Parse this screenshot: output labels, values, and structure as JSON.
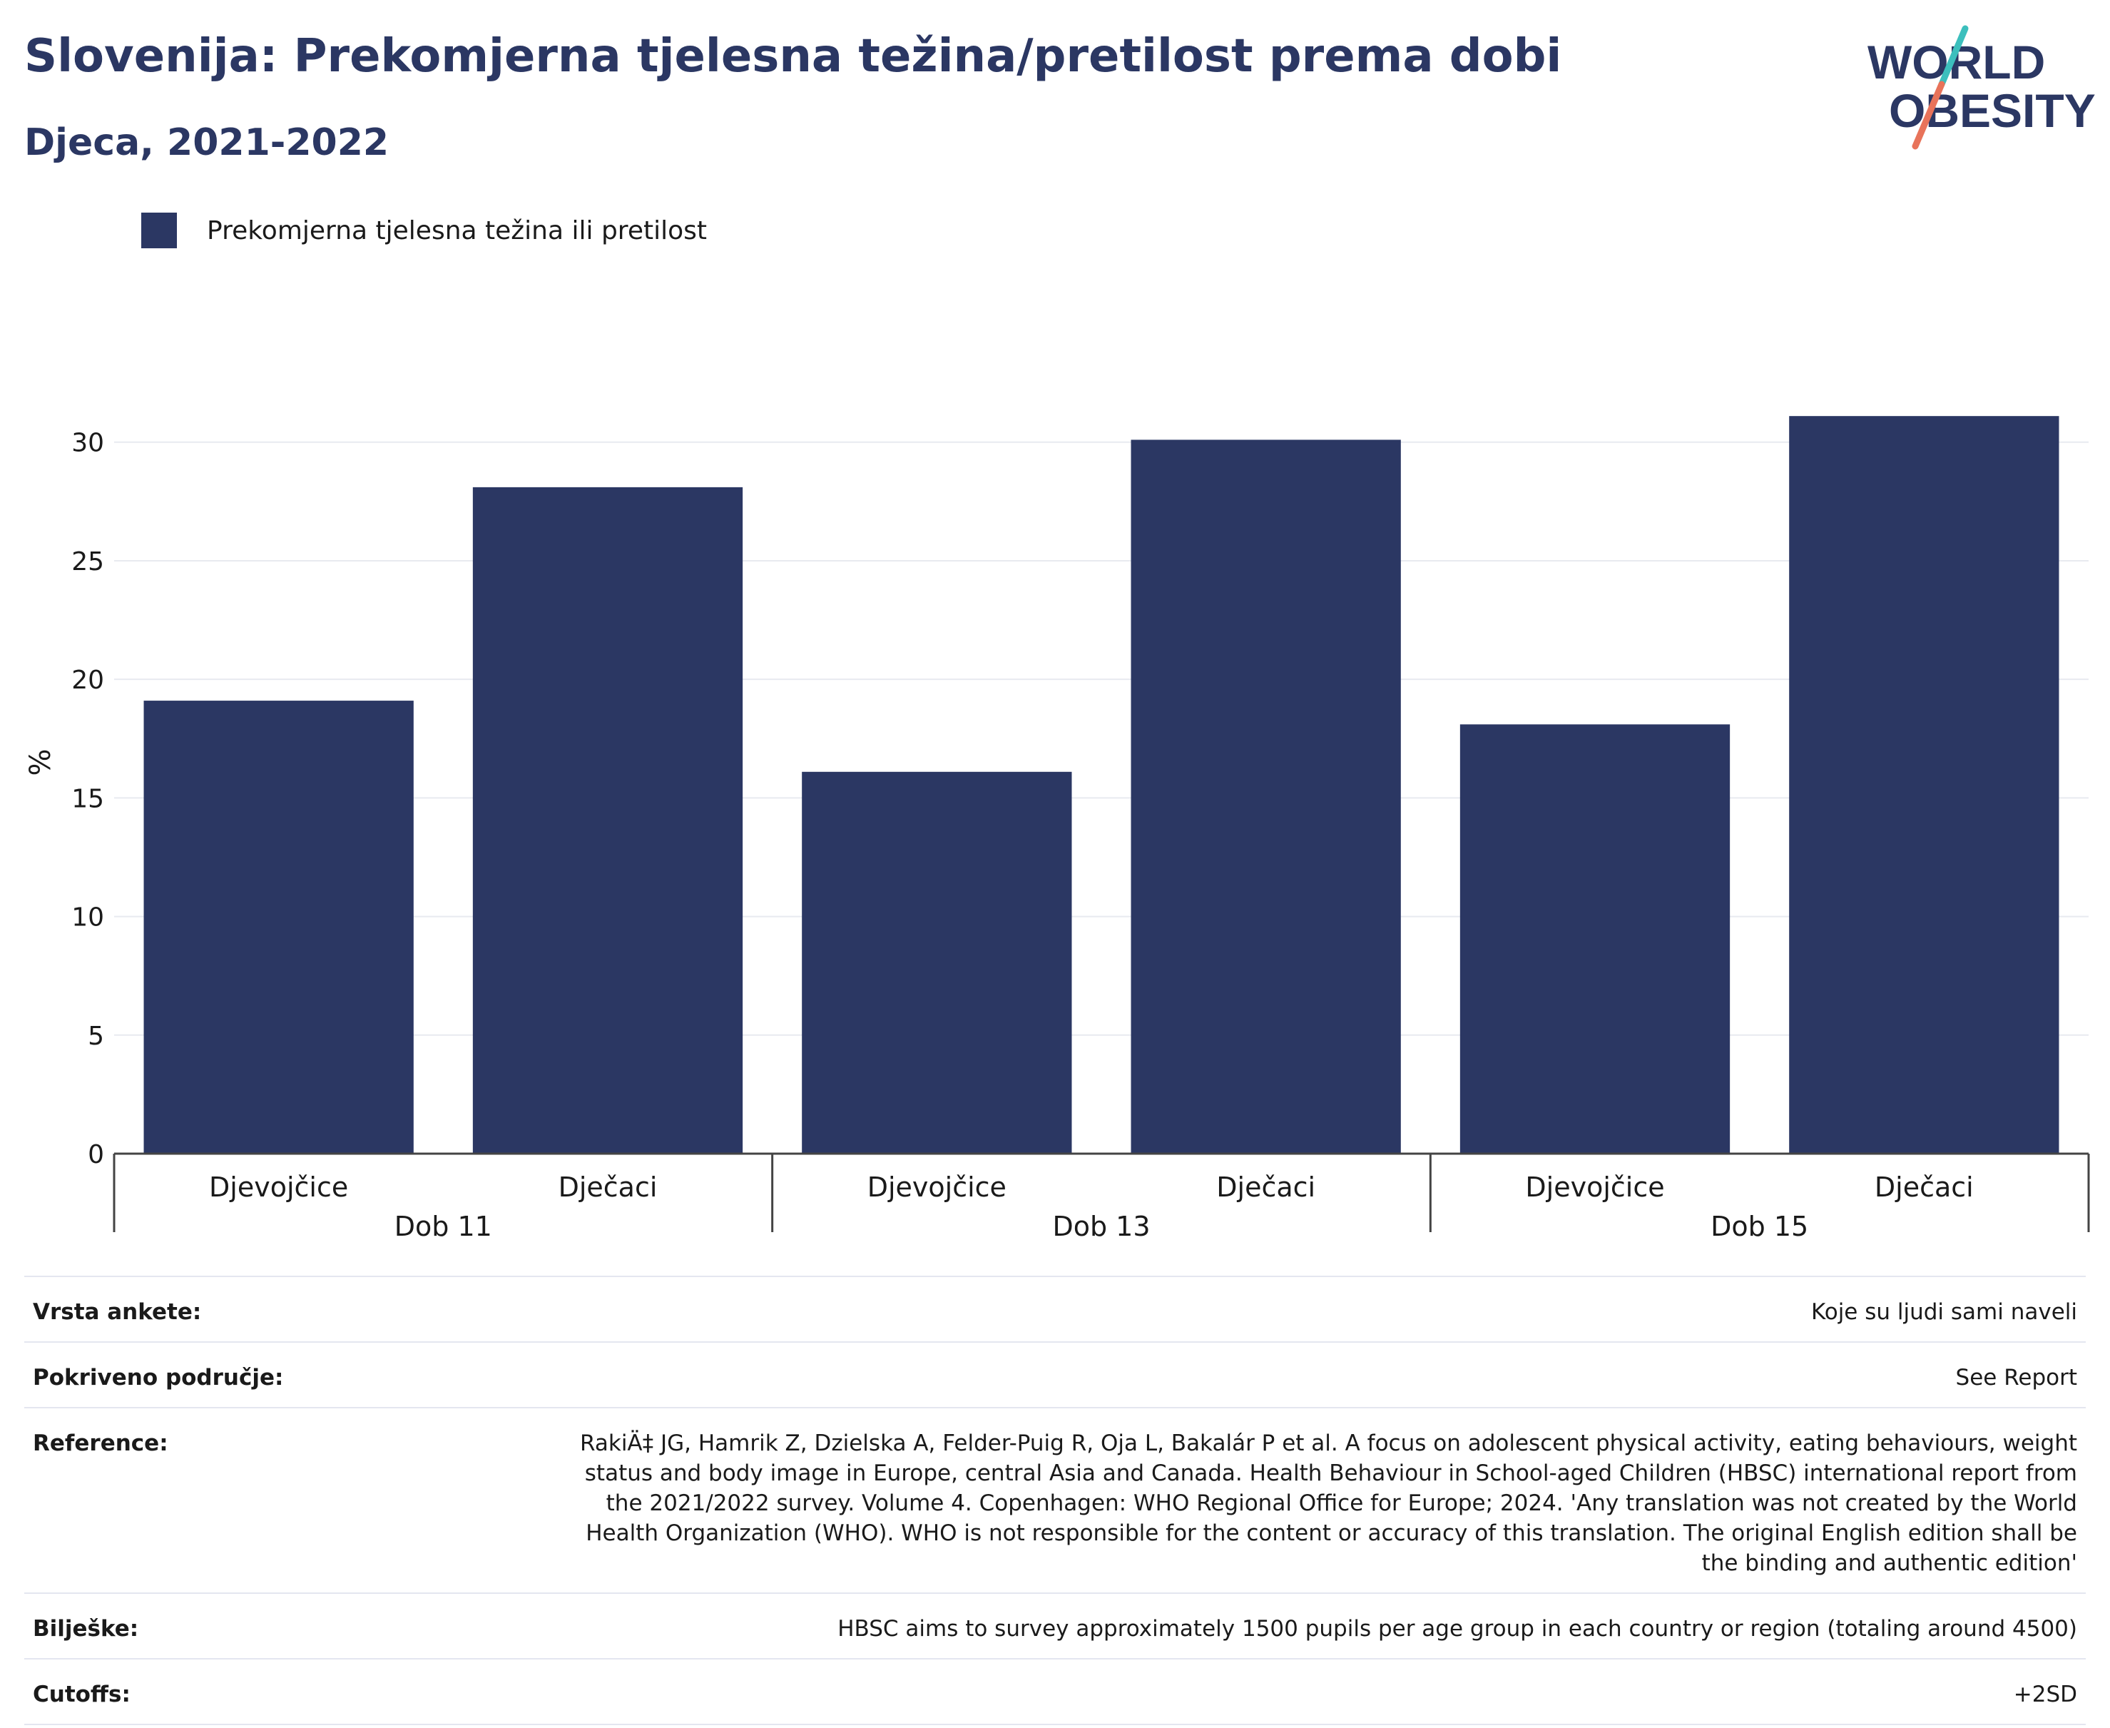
{
  "title": "Slovenija: Prekomjerna tjelesna težina/pretilost prema dobi",
  "subtitle": "Djeca, 2021-2022",
  "logo": {
    "line1": "WORLD",
    "line2": "OBESITY",
    "accent_teal": "#3cbfbd",
    "accent_coral": "#e8735a"
  },
  "colors": {
    "bar": "#2b3763",
    "grid": "#e8eaf0",
    "axis": "#444444",
    "title": "#2b3763"
  },
  "chart_data": {
    "type": "bar",
    "groups": [
      "Dob 11",
      "Dob 13",
      "Dob 15"
    ],
    "categories": [
      "Djevojčice",
      "Dječaci",
      "Djevojčice",
      "Dječaci",
      "Djevojčice",
      "Dječaci"
    ],
    "series": [
      {
        "name": "Prekomjerna tjelesna težina ili pretilost",
        "values": [
          19.1,
          28.1,
          16.1,
          30.1,
          18.1,
          31.1
        ]
      }
    ],
    "ylabel": "%",
    "ylim": [
      0,
      33
    ],
    "yticks": [
      0,
      5,
      10,
      15,
      20,
      25,
      30
    ],
    "grid": true,
    "legend_position": "top-left"
  },
  "meta": [
    {
      "label": "Vrsta ankete:",
      "value": "Koje su ljudi sami naveli"
    },
    {
      "label": "Pokriveno područje:",
      "value": "See Report"
    },
    {
      "label": "Reference:",
      "value": "RakiÄ‡ JG, Hamrik Z, Dzielska A, Felder-Puig R, Oja L, Bakalár P et al. A focus on adolescent physical activity, eating behaviours, weight status and body image in Europe, central Asia and Canada. Health Behaviour in School-aged Children (HBSC) international report from the 2021/2022 survey. Volume 4. Copenhagen: WHO Regional Office for Europe; 2024. 'Any translation was not created by the World Health Organization (WHO). WHO is not responsible for the content or accuracy of this translation. The original English edition shall be the binding and authentic edition'"
    },
    {
      "label": "Bilješke:",
      "value": "HBSC aims to survey approximately 1500 pupils per age group in each country or region (totaling around 4500)"
    },
    {
      "label": "Cutoffs:",
      "value": "+2SD"
    }
  ]
}
